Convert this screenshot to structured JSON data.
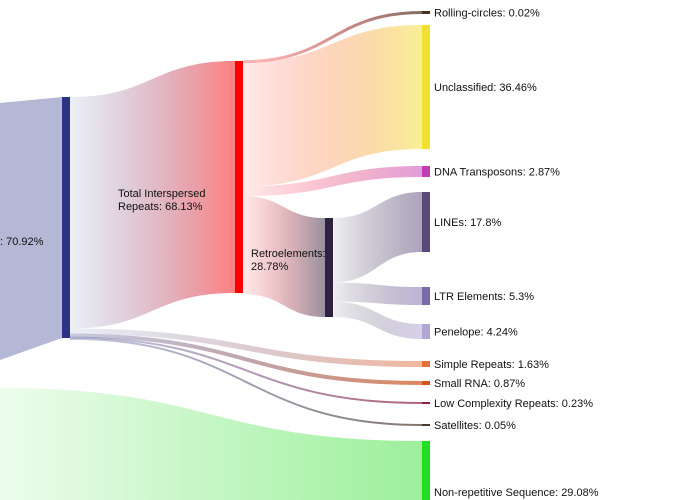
{
  "chart_data": {
    "type": "sankey",
    "nodes": [
      {
        "id": "repeats",
        "label": ": 70.92%",
        "color": "#2b3384"
      },
      {
        "id": "interspersed",
        "label_lines": [
          "Total Interspersed",
          "Repeats: 68.13%"
        ],
        "color": "#ff0000"
      },
      {
        "id": "retro",
        "label_lines": [
          "Retroelements:",
          "28.78%"
        ],
        "color": "#2e2240"
      },
      {
        "id": "rolling",
        "label": "Rolling-circles: 0.02%",
        "color": "#4a3020"
      },
      {
        "id": "unclassified",
        "label": "Unclassified: 36.46%",
        "color": "#f2e02e"
      },
      {
        "id": "dna",
        "label": "DNA Transposons: 2.87%",
        "color": "#c23db3"
      },
      {
        "id": "lines",
        "label": "LINEs: 17.8%",
        "color": "#5a4a7a"
      },
      {
        "id": "ltr",
        "label": "LTR Elements: 5.3%",
        "color": "#7a6aaa"
      },
      {
        "id": "penelope",
        "label": "Penelope: 4.24%",
        "color": "#b0a5d5"
      },
      {
        "id": "simple",
        "label": "Simple Repeats: 1.63%",
        "color": "#e4703c"
      },
      {
        "id": "smallrna",
        "label": "Small RNA: 0.87%",
        "color": "#d2541a"
      },
      {
        "id": "lowcomplex",
        "label": "Low Complexity Repeats: 0.23%",
        "color": "#8e1f3f"
      },
      {
        "id": "satellites",
        "label": "Satellites: 0.05%",
        "color": "#4a3a2a"
      },
      {
        "id": "nonrep",
        "label": "Non-repetitive Sequence: 29.08%",
        "color": "#22dd22"
      }
    ],
    "links": [
      {
        "source": "repeats",
        "target": "interspersed",
        "value": 68.13
      },
      {
        "source": "repeats",
        "target": "simple",
        "value": 1.63
      },
      {
        "source": "repeats",
        "target": "smallrna",
        "value": 0.87
      },
      {
        "source": "repeats",
        "target": "lowcomplex",
        "value": 0.23
      },
      {
        "source": "repeats",
        "target": "satellites",
        "value": 0.05
      },
      {
        "source": "interspersed",
        "target": "rolling",
        "value": 0.02
      },
      {
        "source": "interspersed",
        "target": "unclassified",
        "value": 36.46
      },
      {
        "source": "interspersed",
        "target": "dna",
        "value": 2.87
      },
      {
        "source": "interspersed",
        "target": "retro",
        "value": 28.78
      },
      {
        "source": "retro",
        "target": "lines",
        "value": 17.8
      },
      {
        "source": "retro",
        "target": "ltr",
        "value": 5.3
      },
      {
        "source": "retro",
        "target": "penelope",
        "value": 4.24
      },
      {
        "source": "root",
        "target": "nonrep",
        "value": 29.08
      }
    ]
  }
}
